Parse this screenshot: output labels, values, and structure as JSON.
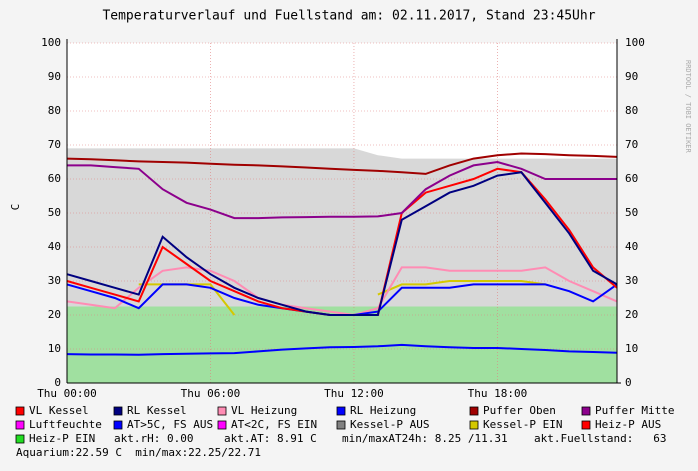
{
  "chart_data": {
    "type": "line",
    "title": "Temperaturverlauf und Fuellstand am: 02.11.2017, Stand 23:45Uhr",
    "y_label": "C",
    "watermark": "RRDTOOL / TOBI OETIKER",
    "x": [
      0,
      1,
      2,
      3,
      4,
      5,
      6,
      7,
      8,
      9,
      10,
      11,
      12,
      13,
      14,
      15,
      16,
      17,
      18,
      19,
      20,
      21,
      22,
      23
    ],
    "xlim": [
      0,
      23
    ],
    "xticks": [
      {
        "value": 0,
        "label": "Thu 00:00"
      },
      {
        "value": 6,
        "label": "Thu 06:00"
      },
      {
        "value": 12,
        "label": "Thu 12:00"
      },
      {
        "value": 18,
        "label": "Thu 18:00"
      }
    ],
    "ylim": [
      0,
      100
    ],
    "yticks": [
      0,
      10,
      20,
      30,
      40,
      50,
      60,
      70,
      80,
      90,
      100
    ],
    "grid": true,
    "series": [
      {
        "name": "VL Kessel",
        "color": "#ff0000",
        "kind": "line",
        "values": [
          30,
          28,
          26,
          24,
          40,
          35,
          30,
          27,
          24,
          22,
          21,
          20,
          20,
          20,
          50,
          56,
          58,
          60,
          63,
          62,
          54,
          45,
          34,
          28
        ]
      },
      {
        "name": "RL Kessel",
        "color": "#000080",
        "kind": "line",
        "values": [
          32,
          30,
          28,
          26,
          43,
          37,
          32,
          28,
          25,
          23,
          21,
          20,
          20,
          20,
          48,
          52,
          56,
          58,
          61,
          62,
          53,
          44,
          33,
          29
        ]
      },
      {
        "name": "VL Heizung",
        "color": "#ff8cb4",
        "kind": "line",
        "values": [
          24,
          23,
          22,
          28,
          33,
          34,
          33,
          30,
          25,
          23,
          22,
          21,
          20,
          22,
          34,
          34,
          33,
          33,
          33,
          33,
          34,
          30,
          27,
          24
        ]
      },
      {
        "name": "RL Heizung",
        "color": "#0000ff",
        "kind": "line",
        "values": [
          29,
          27,
          25,
          22,
          29,
          29,
          28,
          25,
          23,
          22,
          21,
          20,
          20,
          21,
          28,
          28,
          28,
          29,
          29,
          29,
          29,
          27,
          24,
          29
        ]
      },
      {
        "name": "Puffer Oben",
        "color": "#a00000",
        "kind": "line",
        "values": [
          66,
          65.8,
          65.5,
          65.2,
          65,
          64.8,
          64.5,
          64.2,
          64,
          63.7,
          63.4,
          63,
          62.7,
          62.4,
          62,
          61.5,
          64,
          66,
          67,
          67.5,
          67.3,
          67,
          66.8,
          66.5
        ]
      },
      {
        "name": "Puffer Mitte",
        "color": "#8c008c",
        "kind": "line",
        "values": [
          64,
          64,
          63.5,
          63,
          57,
          53,
          51,
          48.5,
          48.5,
          48.7,
          48.8,
          48.9,
          48.9,
          49,
          50,
          57,
          61,
          64,
          65,
          63,
          60,
          60,
          60,
          60
        ]
      },
      {
        "name": "Luftfeuchte",
        "color": "#ff00ff",
        "kind": "legend"
      },
      {
        "name": "AT>5C, FS AUS",
        "color": "#0000ff",
        "kind": "line",
        "values": [
          8.5,
          8.4,
          8.4,
          8.3,
          8.5,
          8.6,
          8.7,
          8.8,
          9.3,
          9.8,
          10.2,
          10.5,
          10.6,
          10.8,
          11.2,
          10.8,
          10.5,
          10.3,
          10.3,
          10,
          9.7,
          9.3,
          9.1,
          8.9
        ]
      },
      {
        "name": "AT<2C, FS EIN",
        "color": "#ff00ff",
        "kind": "legend"
      },
      {
        "name": "Kessel-P AUS",
        "color": "#808080",
        "kind": "area",
        "values": [
          69,
          69,
          69,
          69,
          69,
          69,
          69,
          69,
          69,
          69,
          69,
          69,
          69,
          67,
          66,
          66,
          66,
          66,
          66,
          66,
          66,
          66,
          66,
          66
        ]
      },
      {
        "name": "Kessel-P EIN",
        "color": "#d4c800",
        "kind": "line",
        "values": [
          null,
          null,
          null,
          29,
          29,
          29,
          29,
          20,
          null,
          null,
          null,
          null,
          null,
          26,
          29,
          29,
          30,
          30,
          30,
          30,
          29,
          null,
          null,
          null
        ]
      },
      {
        "name": "Heiz-P AUS",
        "color": "#ff0000",
        "kind": "legend"
      },
      {
        "name": "Heiz-P EIN",
        "color": "#22dd22",
        "kind": "area",
        "values": [
          22.5,
          22.5,
          22.5,
          22.5,
          22.5,
          22.5,
          22.5,
          22.5,
          22.5,
          22.5,
          22.5,
          22.5,
          22.5,
          22.5,
          22.5,
          22.5,
          22.5,
          22.5,
          22.5,
          22.5,
          22.5,
          22.5,
          22.5,
          22.5
        ]
      }
    ],
    "info": [
      "akt.rH: 0.00",
      "akt.AT: 8.91 C",
      "min/maxAT24h: 8.25 /11.31",
      "akt.Fuellstand:   63",
      "Aquarium:22.59 C  min/max:22.25/22.71"
    ]
  }
}
